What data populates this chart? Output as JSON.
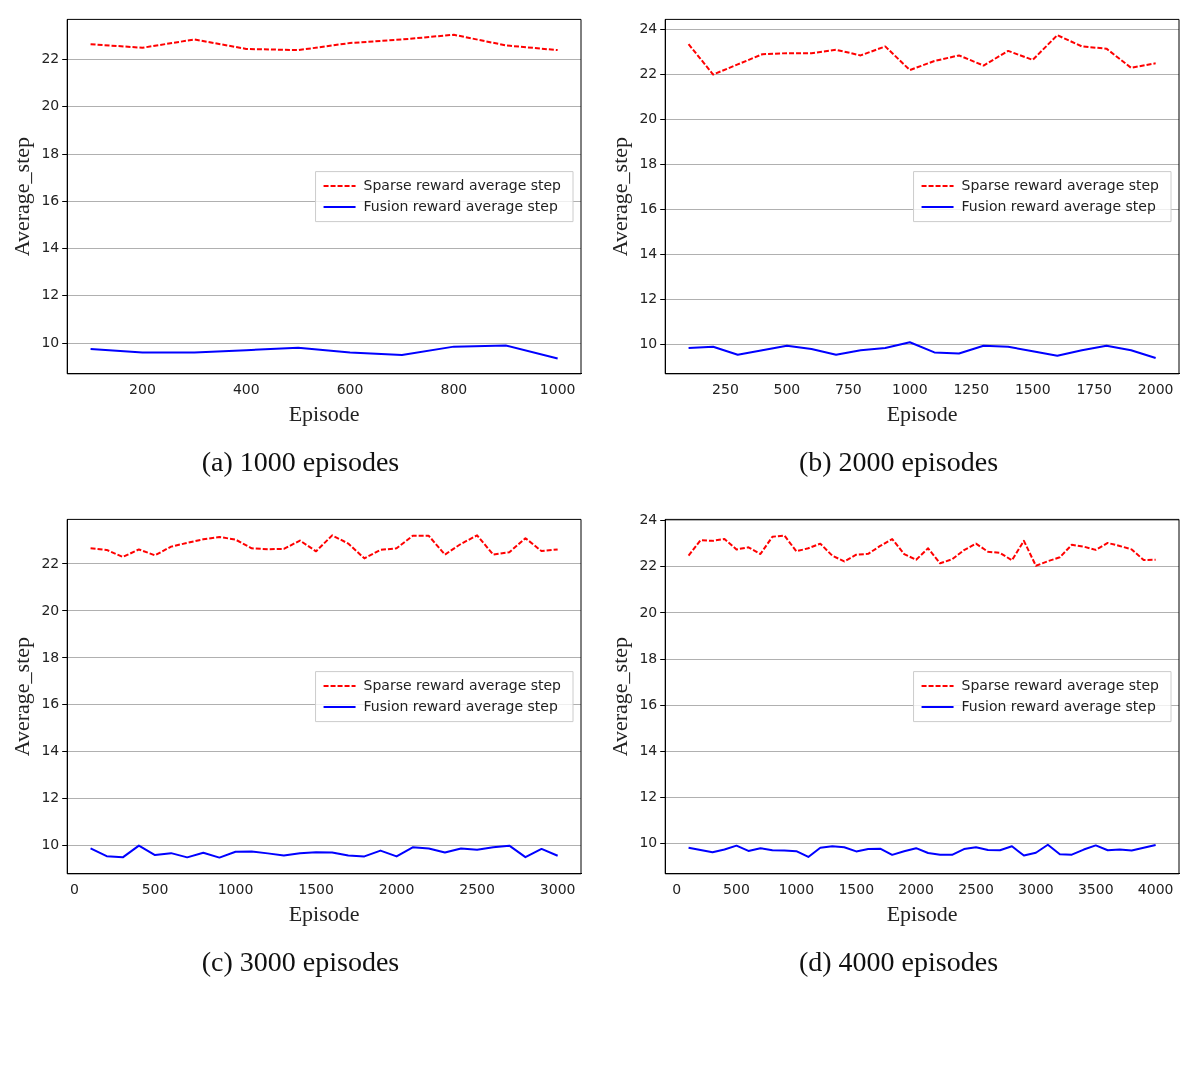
{
  "chart_data": [
    {
      "type": "line",
      "xlabel": "Episode",
      "ylabel": "Average_step",
      "annotations": [
        "(a) 1000 episodes"
      ],
      "legend": "right",
      "grid": "y",
      "x": [
        100,
        200,
        300,
        400,
        500,
        600,
        700,
        800,
        900,
        1000
      ],
      "xlim": [
        55,
        1045
      ],
      "xticks": [
        200,
        400,
        600,
        800,
        1000
      ],
      "ylim": [
        8.7,
        23.7
      ],
      "yticks": [
        10,
        12,
        14,
        16,
        18,
        20,
        22
      ],
      "series": [
        {
          "name": "Sparse reward average step",
          "color": "#ff0000",
          "line_style": "dashed",
          "values": [
            22.65,
            22.5,
            22.85,
            22.45,
            22.4,
            22.7,
            22.85,
            23.05,
            22.6,
            22.4
          ]
        },
        {
          "name": "Fusion reward average step",
          "color": "#0000ff",
          "line_style": "solid",
          "values": [
            9.75,
            9.6,
            9.6,
            9.7,
            9.8,
            9.6,
            9.5,
            9.85,
            9.9,
            9.35
          ]
        }
      ]
    },
    {
      "type": "line",
      "xlabel": "Episode",
      "ylabel": "Average_step",
      "annotations": [
        "(b) 2000 episodes"
      ],
      "legend": "right",
      "grid": "y",
      "x": [
        100,
        200,
        300,
        400,
        500,
        600,
        700,
        800,
        900,
        1000,
        1100,
        1200,
        1300,
        1400,
        1500,
        1600,
        1700,
        1800,
        1900,
        2000
      ],
      "xlim": [
        5,
        2095
      ],
      "xticks": [
        250,
        500,
        750,
        1000,
        1250,
        1500,
        1750,
        2000
      ],
      "ylim": [
        8.7,
        24.45
      ],
      "yticks": [
        10,
        12,
        14,
        16,
        18,
        20,
        22,
        24
      ],
      "series": [
        {
          "name": "Sparse reward average step",
          "color": "#ff0000",
          "line_style": "dashed",
          "values": [
            23.35,
            22.0,
            22.45,
            22.9,
            22.95,
            22.95,
            23.1,
            22.85,
            23.25,
            22.2,
            22.6,
            22.85,
            22.4,
            23.05,
            22.65,
            23.75,
            23.25,
            23.15,
            22.3,
            22.5
          ]
        },
        {
          "name": "Fusion reward average step",
          "color": "#0000ff",
          "line_style": "solid",
          "values": [
            9.85,
            9.9,
            9.55,
            9.75,
            9.95,
            9.8,
            9.55,
            9.75,
            9.85,
            10.1,
            9.65,
            9.6,
            9.95,
            9.9,
            9.7,
            9.5,
            9.75,
            9.95,
            9.75,
            9.4
          ]
        }
      ]
    },
    {
      "type": "line",
      "xlabel": "Episode",
      "ylabel": "Average_step",
      "annotations": [
        "(c) 3000 episodes"
      ],
      "legend": "right",
      "grid": "y",
      "x": [
        100,
        200,
        300,
        400,
        500,
        600,
        700,
        800,
        900,
        1000,
        1100,
        1200,
        1300,
        1400,
        1500,
        1600,
        1700,
        1800,
        1900,
        2000,
        2100,
        2200,
        2300,
        2400,
        2500,
        2600,
        2700,
        2800,
        2900,
        3000
      ],
      "xlim": [
        -45,
        3145
      ],
      "xticks": [
        0,
        500,
        1000,
        1500,
        2000,
        2500,
        3000
      ],
      "ylim": [
        8.8,
        23.9
      ],
      "yticks": [
        10,
        12,
        14,
        16,
        18,
        20,
        22
      ],
      "series": [
        {
          "name": "Sparse reward average step",
          "color": "#ff0000",
          "line_style": "dashed",
          "values": [
            22.67,
            22.6,
            22.3,
            22.62,
            22.37,
            22.74,
            22.9,
            23.05,
            23.15,
            23.04,
            22.67,
            22.63,
            22.64,
            23.0,
            22.54,
            23.22,
            22.87,
            22.24,
            22.6,
            22.67,
            23.2,
            23.2,
            22.4,
            22.86,
            23.22,
            22.4,
            22.5,
            23.1,
            22.55,
            22.62
          ]
        },
        {
          "name": "Fusion reward average step",
          "color": "#0000ff",
          "line_style": "solid",
          "values": [
            9.88,
            9.55,
            9.5,
            10.0,
            9.6,
            9.68,
            9.5,
            9.7,
            9.49,
            9.74,
            9.75,
            9.67,
            9.58,
            9.68,
            9.72,
            9.71,
            9.58,
            9.54,
            9.79,
            9.54,
            9.93,
            9.88,
            9.71,
            9.88,
            9.82,
            9.93,
            10.0,
            9.51,
            9.86,
            9.57
          ]
        }
      ]
    },
    {
      "type": "line",
      "xlabel": "Episode",
      "ylabel": "Average_step",
      "annotations": [
        "(d) 4000 episodes"
      ],
      "legend": "right",
      "grid": "y",
      "x": [
        100,
        200,
        300,
        400,
        500,
        600,
        700,
        800,
        900,
        1000,
        1100,
        1200,
        1300,
        1400,
        1500,
        1600,
        1700,
        1800,
        1900,
        2000,
        2100,
        2200,
        2300,
        2400,
        2500,
        2600,
        2700,
        2800,
        2900,
        3000,
        3100,
        3200,
        3300,
        3400,
        3500,
        3600,
        3700,
        3800,
        3900,
        4000
      ],
      "xlim": [
        -95,
        4195
      ],
      "xticks": [
        0,
        500,
        1000,
        1500,
        2000,
        2500,
        3000,
        3500,
        4000
      ],
      "ylim": [
        8.7,
        24.05
      ],
      "yticks": [
        10,
        12,
        14,
        16,
        18,
        20,
        22,
        24
      ],
      "series": [
        {
          "name": "Sparse reward average step",
          "color": "#ff0000",
          "line_style": "dashed",
          "values": [
            22.48,
            23.15,
            23.12,
            23.2,
            22.75,
            22.84,
            22.55,
            23.3,
            23.35,
            22.67,
            22.8,
            23.0,
            22.48,
            22.23,
            22.52,
            22.56,
            22.9,
            23.2,
            22.55,
            22.3,
            22.8,
            22.15,
            22.32,
            22.72,
            23.0,
            22.65,
            22.6,
            22.28,
            23.12,
            22.04,
            22.24,
            22.41,
            22.95,
            22.87,
            22.73,
            23.03,
            22.9,
            22.75,
            22.29,
            22.3
          ]
        },
        {
          "name": "Fusion reward average step",
          "color": "#0000ff",
          "line_style": "solid",
          "values": [
            9.83,
            9.73,
            9.63,
            9.75,
            9.92,
            9.69,
            9.81,
            9.72,
            9.71,
            9.68,
            9.43,
            9.83,
            9.89,
            9.85,
            9.67,
            9.77,
            9.79,
            9.52,
            9.68,
            9.81,
            9.6,
            9.53,
            9.52,
            9.77,
            9.85,
            9.73,
            9.72,
            9.89,
            9.49,
            9.61,
            9.96,
            9.55,
            9.53,
            9.75,
            9.93,
            9.72,
            9.75,
            9.71,
            9.83,
            9.95
          ]
        }
      ]
    }
  ]
}
